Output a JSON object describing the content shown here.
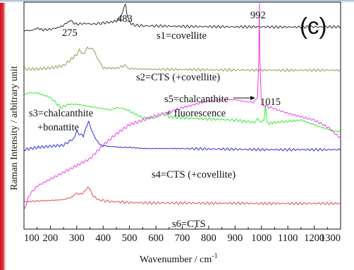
{
  "panel_label": "(c)",
  "chart_data": {
    "type": "line",
    "title": "",
    "xlabel": "Wavenumber / cm",
    "xlabel_sup": "-1",
    "ylabel": "Raman Intensity / arbitrary unit",
    "xlim": [
      100,
      1300
    ],
    "ylim": [
      0,
      100
    ],
    "x_ticks": [
      "100",
      "200",
      "300",
      "400",
      "500",
      "600",
      "700",
      "800",
      "900",
      "1000",
      "1100",
      "1200",
      "1300"
    ],
    "grid": false,
    "y_ticks_shown": false,
    "legend": "none",
    "series": [
      {
        "name": "s1=covellite",
        "color": "#2b2b2b",
        "x": [
          100,
          130,
          150,
          170,
          200,
          230,
          250,
          265,
          275,
          285,
          300,
          330,
          360,
          400,
          430,
          450,
          465,
          475,
          480,
          483,
          486,
          490,
          500,
          520,
          560,
          600,
          700,
          800,
          900,
          1000,
          1100,
          1200,
          1300
        ],
        "y": [
          87.5,
          87.5,
          88.5,
          87.8,
          88,
          88.8,
          89.7,
          91.2,
          91.8,
          91,
          90.3,
          90.6,
          90.3,
          90.8,
          91.2,
          91.8,
          93,
          96,
          98.5,
          99.3,
          98.5,
          95,
          91,
          89.8,
          89.5,
          89.5,
          89.3,
          89.2,
          89.1,
          89.1,
          89,
          89.1,
          89.1
        ]
      },
      {
        "name": "s2=CTS (+covellite)",
        "color": "#9c9450",
        "x": [
          100,
          150,
          200,
          250,
          280,
          300,
          310,
          320,
          330,
          340,
          350,
          360,
          375,
          400,
          450,
          480,
          490,
          500,
          550,
          600,
          700,
          800,
          900,
          1000,
          1100,
          1200,
          1300
        ],
        "y": [
          70.5,
          70.5,
          71,
          72,
          75,
          77,
          79,
          77,
          78,
          80,
          79,
          80,
          76,
          71,
          70.8,
          72,
          71.5,
          70.7,
          70.5,
          70.4,
          70.3,
          70.2,
          70.1,
          70,
          70,
          70,
          70
        ]
      },
      {
        "name": "s3=chalcanthite +bonattite",
        "color": "#2eea2e",
        "x": [
          100,
          120,
          150,
          200,
          240,
          270,
          300,
          350,
          400,
          430,
          450,
          480,
          500,
          550,
          600,
          625,
          650,
          700,
          800,
          900,
          975,
          985,
          990,
          1000,
          1010,
          1015,
          1020,
          1030,
          1050,
          1100,
          1150,
          1200,
          1250,
          1280,
          1300
        ],
        "y": [
          59.5,
          60,
          60,
          58,
          53.5,
          55,
          55,
          54,
          53,
          52.5,
          53.5,
          53,
          52,
          49,
          49,
          51,
          49.5,
          49,
          48.5,
          48,
          47,
          49,
          48,
          47.5,
          47.5,
          55,
          47.5,
          46.5,
          47,
          47.5,
          48,
          46,
          44,
          43,
          43
        ]
      },
      {
        "name": "s5=chalcanthite + fluorescence",
        "color": "#ec3aec",
        "x": [
          100,
          120,
          150,
          200,
          250,
          300,
          350,
          400,
          450,
          500,
          550,
          600,
          650,
          700,
          750,
          800,
          850,
          900,
          950,
          975,
          985,
          990,
          992,
          994,
          1000,
          1010,
          1050,
          1100,
          1150,
          1200,
          1250,
          1280,
          1300
        ],
        "y": [
          8,
          15,
          19,
          22,
          25,
          28,
          31,
          37,
          42,
          46,
          48,
          50,
          51.5,
          53.5,
          55,
          56.5,
          57,
          57,
          56,
          56,
          58,
          75,
          99.5,
          75,
          55,
          54.5,
          53,
          51,
          49.5,
          48,
          45,
          42,
          40
        ]
      },
      {
        "name": "s4=CTS (+covellite)",
        "color": "#2b2be0",
        "x": [
          100,
          150,
          200,
          250,
          290,
          300,
          310,
          325,
          335,
          345,
          355,
          370,
          390,
          420,
          470,
          500,
          550,
          600,
          650,
          700,
          800,
          900,
          1000,
          1100,
          1200,
          1300
        ],
        "y": [
          35,
          36,
          36.5,
          37,
          40,
          43,
          42,
          41,
          45,
          47,
          44,
          40,
          37,
          36.5,
          36,
          36,
          35.5,
          35.5,
          35.5,
          35.5,
          35.3,
          35.2,
          35,
          35,
          35,
          35
        ]
      },
      {
        "name": "s6=CTS",
        "color": "#e04a4a",
        "x": [
          100,
          150,
          200,
          250,
          280,
          300,
          310,
          320,
          330,
          340,
          350,
          360,
          380,
          420,
          460,
          500,
          600,
          700,
          800,
          900,
          1000,
          1100,
          1200,
          1300
        ],
        "y": [
          12,
          12.4,
          12.6,
          13,
          14,
          16,
          15,
          15.5,
          17,
          18.2,
          17.5,
          15,
          13,
          12.2,
          12,
          11.7,
          11.5,
          11.5,
          11.4,
          11.4,
          11.3,
          11.3,
          11.3,
          11.3
        ]
      }
    ],
    "annotations": {
      "peak_275": "275",
      "peak_483": "483",
      "peak_992": "992",
      "peak_1015": "1015",
      "s1": "s1=covellite",
      "s2": "s2=CTS (+covellite)",
      "s3_line1": "s3=chalcanthite",
      "s3_line2": "+bonattite",
      "s5_line1": "s5=chalcanthite",
      "s5_line2": "+ fluorescence",
      "s4": "s4=CTS (+covellite)",
      "s6": "s6=CTS"
    }
  }
}
